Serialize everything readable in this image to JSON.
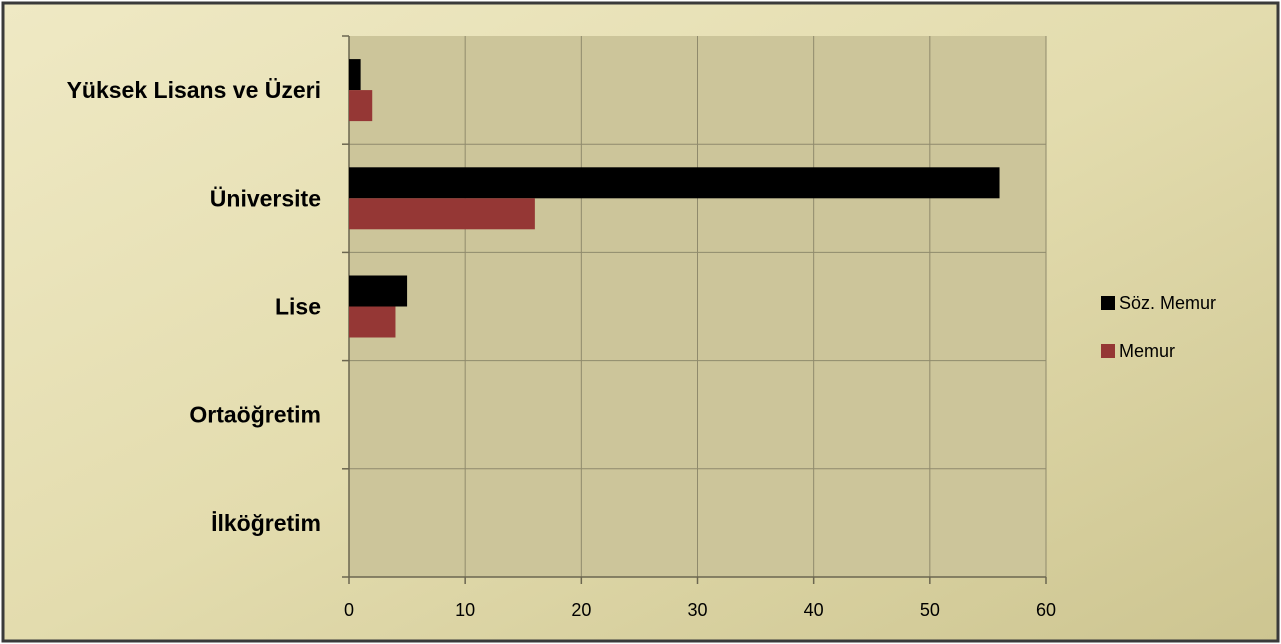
{
  "chart_data": {
    "type": "bar",
    "orientation": "horizontal",
    "categories": [
      "Yüksek Lisans ve Üzeri",
      "Üniversite",
      "Lise",
      "Ortaöğretim",
      "İlköğretim"
    ],
    "series": [
      {
        "name": "Söz. Memur",
        "values": [
          1,
          56,
          5,
          0,
          0
        ]
      },
      {
        "name": "Memur",
        "values": [
          2,
          16,
          4,
          0,
          0
        ]
      }
    ],
    "xlim": [
      0,
      60
    ],
    "xticks": [
      0,
      10,
      20,
      30,
      40,
      50,
      60
    ],
    "grid": true,
    "legend_position": "right",
    "colors": {
      "series": [
        "#000000",
        "#953735"
      ],
      "background": "#ccc59a",
      "gridline": "#8f8a6c"
    }
  }
}
